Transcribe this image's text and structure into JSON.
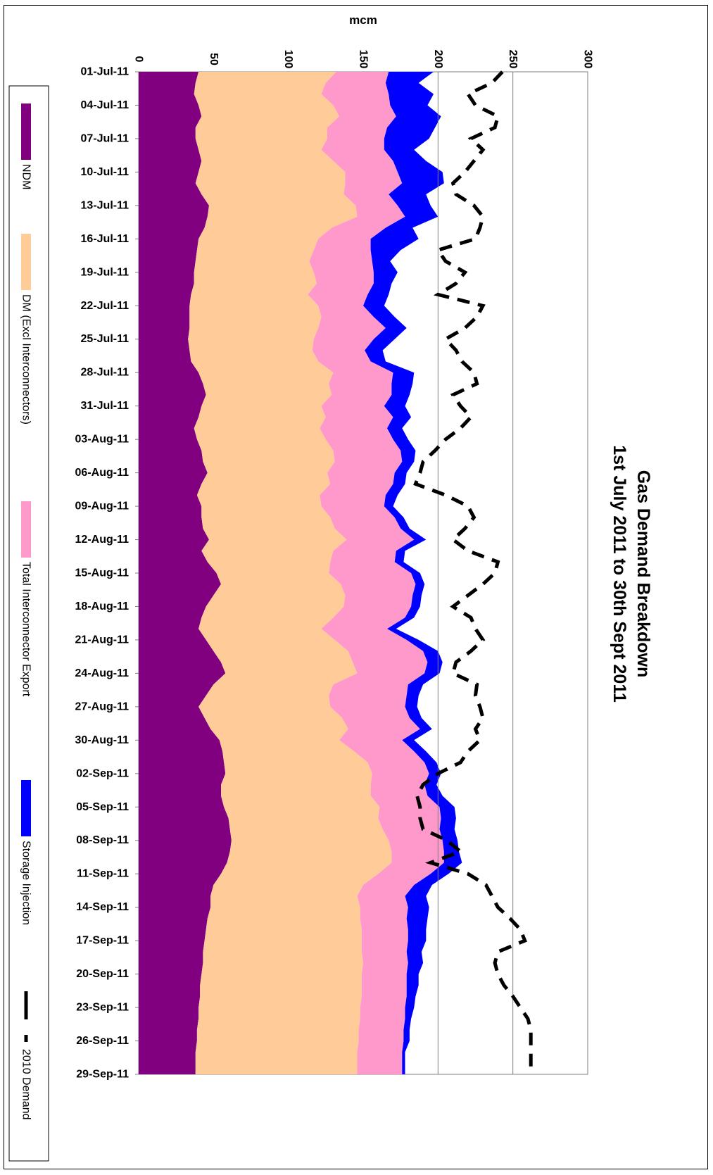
{
  "chart_data": {
    "type": "area",
    "orientation": "rotated-90-clockwise",
    "title": "Gas Demand Breakdown",
    "subtitle": "1st July 2011 to 30th Sept 2011",
    "ylabel": "mcm",
    "xlabel": "",
    "ylim": [
      0,
      300
    ],
    "yticks": [
      "0",
      "50",
      "100",
      "150",
      "200",
      "250",
      "300"
    ],
    "gridlines_at": [
      200,
      250
    ],
    "x_tick_labels": [
      "01-Jul-11",
      "04-Jul-11",
      "07-Jul-11",
      "10-Jul-11",
      "13-Jul-11",
      "16-Jul-11",
      "19-Jul-11",
      "22-Jul-11",
      "25-Jul-11",
      "28-Jul-11",
      "31-Jul-11",
      "03-Aug-11",
      "06-Aug-11",
      "09-Aug-11",
      "12-Aug-11",
      "15-Aug-11",
      "18-Aug-11",
      "21-Aug-11",
      "24-Aug-11",
      "27-Aug-11",
      "30-Aug-11",
      "02-Sep-11",
      "05-Sep-11",
      "08-Sep-11",
      "11-Sep-11",
      "14-Sep-11",
      "17-Sep-11",
      "20-Sep-11",
      "23-Sep-11",
      "26-Sep-11",
      "29-Sep-11"
    ],
    "x_start": "2011-07-01",
    "x_end": "2011-09-30",
    "legend_position": "bottom",
    "stacked": true,
    "series": [
      {
        "name": "NDM",
        "kind": "stacked-area",
        "color": "#800080",
        "values": [
          40,
          38,
          37,
          40,
          42,
          38,
          38,
          40,
          42,
          40,
          38,
          42,
          47,
          46,
          44,
          40,
          39,
          38,
          37,
          37,
          35,
          34,
          34,
          34,
          33,
          34,
          35,
          40,
          43,
          45,
          42,
          40,
          37,
          39,
          42,
          43,
          46,
          42,
          39,
          42,
          42,
          43,
          47,
          42,
          46,
          52,
          55,
          50,
          45,
          42,
          40,
          45,
          50,
          55,
          58,
          50,
          45,
          40,
          44,
          48,
          54,
          56,
          57,
          58,
          55,
          55,
          57,
          60,
          61,
          62,
          61,
          59,
          55,
          50,
          48,
          48,
          46,
          45,
          44,
          43,
          43,
          42,
          41,
          41,
          40,
          40,
          39,
          39,
          38,
          38,
          38
        ]
      },
      {
        "name": "DM (Excl Interconnectors)",
        "kind": "stacked-area",
        "color": "#FFCC99",
        "values": [
          92,
          87,
          85,
          90,
          92,
          88,
          88,
          82,
          88,
          98,
          100,
          95,
          98,
          100,
          85,
          80,
          78,
          76,
          80,
          82,
          78,
          86,
          88,
          86,
          84,
          82,
          85,
          90,
          84,
          84,
          80,
          85,
          84,
          86,
          88,
          88,
          80,
          86,
          82,
          80,
          86,
          88,
          92,
          88,
          82,
          75,
          80,
          88,
          92,
          88,
          82,
          86,
          90,
          88,
          88,
          80,
          82,
          88,
          92,
          92,
          80,
          88,
          96,
          98,
          100,
          100,
          104,
          100,
          102,
          105,
          108,
          110,
          105,
          100,
          98,
          100,
          102,
          104,
          105,
          106,
          107,
          107,
          108,
          108,
          108,
          108,
          108,
          108,
          108,
          108,
          108
        ]
      },
      {
        "name": "Total Interconnector Export",
        "kind": "stacked-area",
        "color": "#FF99CC",
        "values": [
          35,
          40,
          45,
          38,
          38,
          40,
          38,
          42,
          40,
          35,
          38,
          30,
          28,
          32,
          36,
          35,
          38,
          42,
          40,
          38,
          40,
          30,
          35,
          45,
          40,
          35,
          35,
          40,
          42,
          40,
          42,
          45,
          45,
          45,
          45,
          45,
          45,
          42,
          44,
          42,
          43,
          44,
          45,
          42,
          43,
          55,
          50,
          45,
          45,
          48,
          44,
          48,
          50,
          50,
          45,
          50,
          52,
          50,
          45,
          48,
          42,
          40,
          38,
          38,
          36,
          38,
          40,
          42,
          38,
          36,
          35,
          35,
          35,
          34,
          32,
          32,
          31,
          31,
          31,
          30,
          30,
          30,
          30,
          30,
          30,
          30,
          30,
          30,
          30,
          30,
          30
        ]
      },
      {
        "name": "Storage Injection",
        "kind": "stacked-area",
        "color": "#0000FF",
        "values": [
          30,
          22,
          30,
          25,
          30,
          32,
          30,
          20,
          22,
          30,
          28,
          25,
          22,
          22,
          18,
          32,
          20,
          12,
          16,
          12,
          14,
          14,
          14,
          14,
          14,
          12,
          10,
          14,
          14,
          12,
          14,
          12,
          10,
          10,
          10,
          8,
          8,
          8,
          8,
          6,
          6,
          6,
          8,
          6,
          6,
          6,
          6,
          6,
          6,
          6,
          6,
          8,
          10,
          10,
          10,
          10,
          8,
          8,
          8,
          8,
          8,
          8,
          8,
          8,
          8,
          10,
          10,
          10,
          10,
          10,
          10,
          12,
          12,
          12,
          14,
          14,
          14,
          12,
          12,
          10,
          10,
          8,
          8,
          6,
          6,
          4,
          4,
          4,
          2,
          2,
          2
        ]
      },
      {
        "name": "2010 Demand",
        "kind": "dashed-line",
        "color": "#000000",
        "values": [
          243,
          236,
          220,
          225,
          240,
          238,
          222,
          230,
          224,
          218,
          210,
          212,
          224,
          230,
          228,
          225,
          200,
          205,
          218,
          212,
          200,
          230,
          226,
          218,
          205,
          212,
          216,
          224,
          226,
          210,
          215,
          222,
          215,
          205,
          198,
          190,
          188,
          185,
          205,
          220,
          224,
          218,
          210,
          220,
          240,
          238,
          230,
          220,
          210,
          222,
          225,
          230,
          222,
          212,
          210,
          226,
          225,
          228,
          230,
          225,
          228,
          220,
          215,
          200,
          190,
          186,
          188,
          188,
          190,
          206,
          215,
          195,
          220,
          232,
          236,
          240,
          248,
          255,
          258,
          240,
          238,
          240,
          244,
          250,
          255,
          260,
          262,
          262,
          262,
          262,
          262
        ]
      }
    ]
  }
}
